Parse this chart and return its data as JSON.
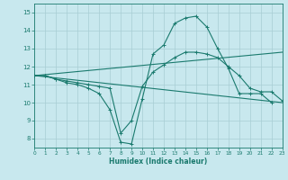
{
  "background_color": "#c8e8ee",
  "grid_color": "#a8cdd4",
  "line_color": "#1a7a6e",
  "xlabel": "Humidex (Indice chaleur)",
  "xlim": [
    0,
    23
  ],
  "ylim": [
    7.5,
    15.5
  ],
  "yticks": [
    8,
    9,
    10,
    11,
    12,
    13,
    14,
    15
  ],
  "xticks": [
    0,
    1,
    2,
    3,
    4,
    5,
    6,
    7,
    8,
    9,
    10,
    11,
    12,
    13,
    14,
    15,
    16,
    17,
    18,
    19,
    20,
    21,
    22,
    23
  ],
  "curves": [
    {
      "x": [
        0,
        1,
        2,
        3,
        4,
        5,
        6,
        7,
        8,
        9,
        10,
        11,
        12,
        13,
        14,
        15,
        16,
        17,
        18,
        19,
        20,
        21,
        22
      ],
      "y": [
        11.5,
        11.5,
        11.3,
        11.1,
        11.0,
        10.8,
        10.5,
        9.6,
        7.8,
        7.7,
        10.2,
        12.7,
        13.2,
        14.4,
        14.7,
        14.8,
        14.2,
        13.0,
        11.9,
        10.5,
        10.5,
        10.5,
        10.0
      ],
      "marker": true
    },
    {
      "x": [
        0,
        1,
        2,
        3,
        4,
        5,
        6,
        7,
        8,
        9,
        10,
        11,
        12,
        13,
        14,
        15,
        16,
        17,
        18,
        19,
        20,
        21,
        22,
        23
      ],
      "y": [
        11.5,
        11.5,
        11.3,
        11.2,
        11.1,
        11.0,
        10.9,
        10.8,
        8.3,
        9.0,
        10.9,
        11.7,
        12.1,
        12.5,
        12.8,
        12.8,
        12.7,
        12.5,
        12.0,
        11.5,
        10.8,
        10.6,
        10.6,
        10.1
      ],
      "marker": true
    },
    {
      "x": [
        0,
        23
      ],
      "y": [
        11.5,
        12.8
      ],
      "marker": false
    },
    {
      "x": [
        0,
        23
      ],
      "y": [
        11.5,
        10.0
      ],
      "marker": false
    }
  ]
}
